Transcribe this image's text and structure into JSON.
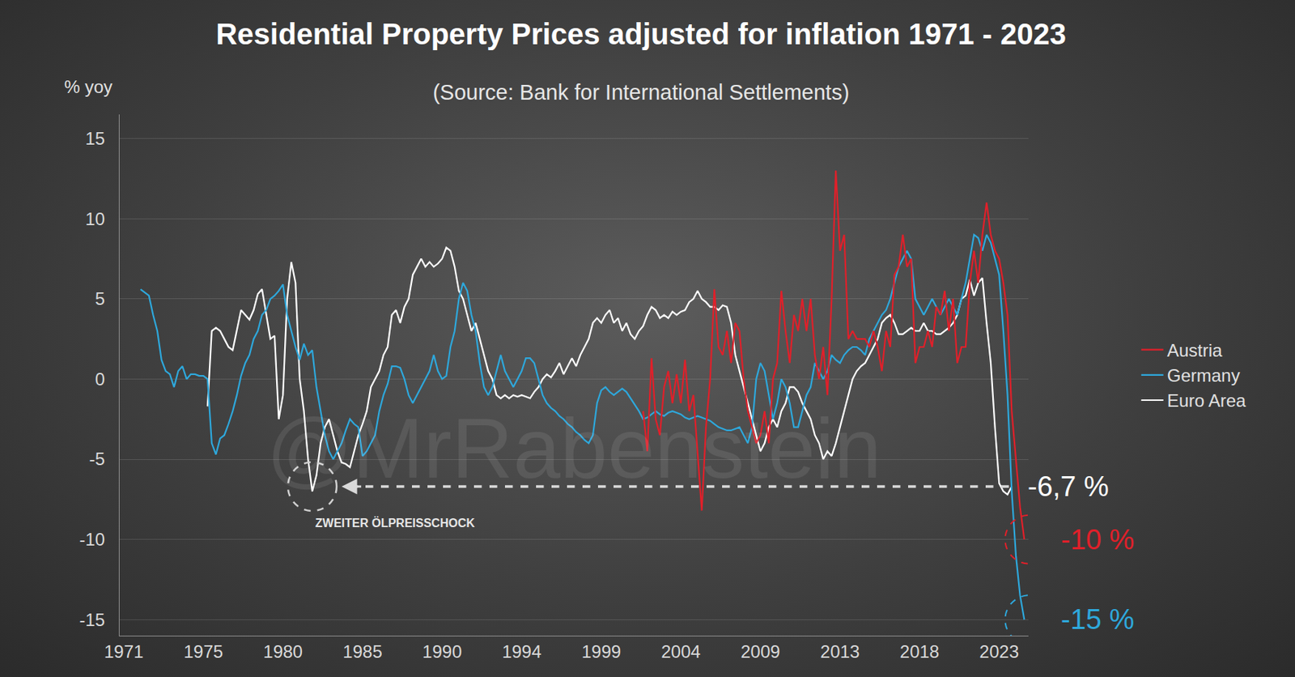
{
  "chart_data": {
    "type": "line",
    "title": "Residential Property Prices adjusted for inflation 1971 - 2023",
    "subtitle": "(Source: Bank for International Settlements)",
    "y_label": "% yoy",
    "categories": [
      "1971",
      null,
      null,
      null,
      null,
      null,
      null,
      null,
      null,
      null,
      null,
      null,
      null,
      null,
      null,
      null,
      null,
      null,
      null,
      "1975",
      null,
      null,
      null,
      null,
      null,
      null,
      null,
      null,
      null,
      null,
      null,
      null,
      null,
      null,
      null,
      null,
      null,
      null,
      "1980",
      null,
      null,
      null,
      null,
      null,
      null,
      null,
      null,
      null,
      null,
      null,
      null,
      null,
      null,
      null,
      null,
      null,
      null,
      "1985",
      null,
      null,
      null,
      null,
      null,
      null,
      null,
      null,
      null,
      null,
      null,
      null,
      null,
      null,
      null,
      null,
      null,
      null,
      "1990",
      null,
      null,
      null,
      null,
      null,
      null,
      null,
      null,
      null,
      null,
      null,
      null,
      null,
      null,
      null,
      null,
      null,
      null,
      "1994",
      null,
      null,
      null,
      null,
      null,
      null,
      null,
      null,
      null,
      null,
      null,
      null,
      null,
      null,
      null,
      null,
      null,
      null,
      "1999",
      null,
      null,
      null,
      null,
      null,
      null,
      null,
      null,
      null,
      null,
      null,
      null,
      null,
      null,
      null,
      null,
      null,
      null,
      "2004",
      null,
      null,
      null,
      null,
      null,
      null,
      null,
      null,
      null,
      null,
      null,
      null,
      null,
      null,
      null,
      null,
      null,
      null,
      "2009",
      null,
      null,
      null,
      null,
      null,
      null,
      null,
      null,
      null,
      null,
      null,
      null,
      null,
      null,
      null,
      null,
      null,
      null,
      "2013",
      null,
      null,
      null,
      null,
      null,
      null,
      null,
      null,
      null,
      null,
      null,
      null,
      null,
      null,
      null,
      null,
      null,
      null,
      "2018",
      null,
      null,
      null,
      null,
      null,
      null,
      null,
      null,
      null,
      null,
      null,
      null,
      null,
      null,
      null,
      null,
      null,
      null,
      "2023",
      null,
      null,
      null,
      null,
      null,
      null
    ],
    "series": [
      {
        "name": "Austria",
        "color": "#e0202a",
        "values": [
          null,
          null,
          null,
          null,
          null,
          null,
          null,
          null,
          null,
          null,
          null,
          null,
          null,
          null,
          null,
          null,
          null,
          null,
          null,
          null,
          null,
          null,
          null,
          null,
          null,
          null,
          null,
          null,
          null,
          null,
          null,
          null,
          null,
          null,
          null,
          null,
          null,
          null,
          null,
          null,
          null,
          null,
          null,
          null,
          null,
          null,
          null,
          null,
          null,
          null,
          null,
          null,
          null,
          null,
          null,
          null,
          null,
          null,
          null,
          null,
          null,
          null,
          null,
          null,
          null,
          null,
          null,
          null,
          null,
          null,
          null,
          null,
          null,
          null,
          null,
          null,
          null,
          null,
          null,
          null,
          null,
          null,
          null,
          null,
          null,
          null,
          null,
          null,
          null,
          null,
          null,
          null,
          null,
          null,
          null,
          null,
          null,
          null,
          null,
          null,
          null,
          null,
          null,
          null,
          null,
          null,
          null,
          null,
          null,
          null,
          null,
          null,
          null,
          null,
          null,
          null,
          null,
          null,
          null,
          null,
          null,
          null,
          null,
          null,
          -2,
          -4.5,
          1.3,
          -2.5,
          -3.5,
          -0.5,
          0.5,
          -1.5,
          0.3,
          -1.5,
          1.2,
          -2,
          -1,
          -4.5,
          -8.2,
          -3,
          0,
          5.6,
          2,
          1.5,
          3,
          1,
          3.5,
          3,
          0,
          -2,
          -3,
          -4,
          -3.5,
          -2,
          -4,
          0,
          1,
          5.5,
          3,
          1,
          4,
          3,
          5,
          3,
          5,
          1.5,
          0,
          2,
          -1,
          5,
          13,
          8,
          9,
          2.5,
          3,
          2.5,
          2.5,
          2.5,
          2,
          3,
          2,
          0.5,
          3,
          2,
          6.5,
          7,
          9,
          7,
          7.5,
          1,
          2,
          2,
          3,
          2,
          4.5,
          4,
          5.5,
          3,
          5,
          1,
          2,
          2,
          6,
          8,
          6,
          9,
          11,
          9,
          8,
          7.5,
          6,
          4,
          -2,
          -5,
          -8,
          -10
        ]
      },
      {
        "name": "Germany",
        "color": "#2ea8dc",
        "values": [
          null,
          null,
          null,
          null,
          5.6,
          5.4,
          5.2,
          4,
          3,
          1.2,
          0.5,
          0.3,
          -0.5,
          0.5,
          0.8,
          0,
          0.3,
          0.3,
          0.2,
          0.2,
          0,
          -4,
          -4.7,
          -3.7,
          -3.5,
          -2.8,
          -2,
          -1,
          0.2,
          1,
          1.5,
          2.5,
          3,
          4,
          4.3,
          5,
          5.2,
          5.5,
          5.9,
          4,
          3,
          2,
          1.2,
          2.2,
          1.5,
          1.8,
          -0.5,
          -2,
          -3.5,
          -4.5,
          -5,
          -4.5,
          -4,
          -3.2,
          -2.5,
          -2.8,
          -3,
          -4.8,
          -4.5,
          -4,
          -3.5,
          -2,
          -1,
          -0.3,
          0.8,
          0.8,
          0.7,
          0,
          -1,
          -1.5,
          -1,
          -0.5,
          0,
          0.5,
          1.5,
          0.5,
          0,
          0.2,
          2,
          3,
          5,
          6,
          5.5,
          4,
          3,
          1,
          -0.5,
          -1,
          -0.5,
          0.5,
          1.5,
          0.5,
          0,
          -0.5,
          0,
          0.5,
          1.3,
          1.3,
          1,
          0,
          -1,
          -1.5,
          -1.8,
          -2,
          -2.3,
          -2.5,
          -2.8,
          -3,
          -3.3,
          -3.5,
          -3.8,
          -4,
          -3.5,
          -1.5,
          -0.7,
          -0.5,
          -0.8,
          -1,
          -0.8,
          -0.6,
          -0.8,
          -1.2,
          -1.6,
          -2,
          -2.5,
          -2.4,
          -2.2,
          -2,
          -2.2,
          -2.3,
          -2.1,
          -2,
          -2.1,
          -2.2,
          -2.4,
          -2.5,
          -2.4,
          -2.3,
          -2.4,
          -2.5,
          -2.6,
          -2.8,
          -3,
          -3.1,
          -3.2,
          -3.2,
          -3.1,
          -3,
          -3.5,
          -4,
          -3,
          0,
          1,
          0.5,
          -1,
          -2.5,
          -1.5,
          0,
          -0.5,
          -1.5,
          -3,
          -3,
          -2,
          -1,
          -0.5,
          1,
          0.5,
          0,
          0.5,
          1.5,
          1.2,
          1,
          1.5,
          1.8,
          2,
          2,
          1.8,
          1.5,
          2.5,
          3,
          3.5,
          4,
          4.3,
          5,
          6,
          7,
          7.5,
          8,
          7.5,
          5,
          4.5,
          4,
          4.5,
          5,
          4.5,
          4,
          4.5,
          5,
          4.5,
          4,
          5,
          6,
          7.5,
          9,
          8.8,
          8,
          9,
          8.5,
          7.5,
          6.5,
          3,
          -1,
          -7,
          -11,
          -13.5,
          -15
        ]
      },
      {
        "name": "Euro Area",
        "color": "#ffffff",
        "values": [
          null,
          null,
          null,
          null,
          null,
          null,
          null,
          null,
          null,
          null,
          null,
          null,
          null,
          null,
          null,
          null,
          null,
          null,
          null,
          null,
          -1.7,
          3,
          3.2,
          3,
          2.5,
          2,
          1.8,
          3,
          4.3,
          4,
          3.7,
          4.3,
          5.3,
          5.6,
          4,
          2.5,
          2.7,
          -2.5,
          -1,
          5,
          7.3,
          6,
          0,
          -2,
          -5,
          -7,
          -6,
          -4,
          -3,
          -2.5,
          -3.5,
          -4.5,
          -5.2,
          -5.3,
          -5.5,
          -4.5,
          -3.5,
          -2.8,
          -2,
          -0.5,
          0,
          0.5,
          1.5,
          2,
          4,
          4.3,
          3.5,
          4.5,
          5,
          6.5,
          7,
          7.5,
          7,
          7.3,
          7,
          7.2,
          7.5,
          8.2,
          8,
          7,
          5.5,
          5,
          4,
          3,
          3.5,
          2.5,
          1.5,
          0.5,
          0,
          -1,
          -1.2,
          -1,
          -1.2,
          -1,
          -1.1,
          -1,
          -1.1,
          -1.2,
          -0.8,
          -0.5,
          0,
          0.3,
          0.1,
          0.5,
          1,
          0.3,
          0.8,
          1.3,
          0.8,
          1.5,
          2,
          2.5,
          3.5,
          3.8,
          3.5,
          4,
          4.3,
          3.5,
          3.8,
          3,
          3.5,
          2.8,
          2.5,
          3,
          3.3,
          4,
          4.5,
          4.3,
          3.8,
          4,
          3.8,
          4.2,
          4,
          4.2,
          4.3,
          4.8,
          5,
          5.5,
          5,
          4.8,
          4.5,
          4.5,
          4.3,
          4.6,
          4.5,
          3.5,
          1.5,
          0.5,
          -0.5,
          -1.5,
          -2.5,
          -3.5,
          -4.5,
          -4,
          -3,
          -2.5,
          -3,
          -2,
          -1.5,
          -0.5,
          -0.5,
          -0.8,
          -1.5,
          -2,
          -2.5,
          -3.5,
          -4,
          -5,
          -4.5,
          -4.8,
          -4,
          -3,
          -2,
          -1,
          0,
          0.5,
          0.8,
          1,
          1.5,
          2,
          2.5,
          3.5,
          3.8,
          4,
          3.5,
          2.8,
          2.8,
          3,
          3.2,
          3,
          3,
          3.5,
          3,
          3,
          2.8,
          2.8,
          3,
          3.2,
          3.5,
          4,
          5,
          5.2,
          6.2,
          5.2,
          6,
          6.3,
          3.5,
          1,
          -3,
          -6.5,
          -7,
          -7.2,
          -6.7,
          null,
          null,
          null
        ]
      }
    ],
    "ylim": [
      -16,
      16.5
    ],
    "yticks": [
      -15,
      -10,
      -5,
      0,
      5,
      10,
      15
    ],
    "grid": true,
    "legend": "right",
    "annotations": [
      {
        "text": "-6,7 %",
        "value": -6.7,
        "series": "Euro Area"
      },
      {
        "text": "-10 %",
        "value": -10,
        "series": "Austria"
      },
      {
        "text": "-15 %",
        "value": -15,
        "series": "Germany"
      },
      {
        "text": "ZWEITER ÖLPREISSCHOCK",
        "series": "Euro Area"
      },
      {
        "text": "@MrRabenstein"
      }
    ]
  }
}
